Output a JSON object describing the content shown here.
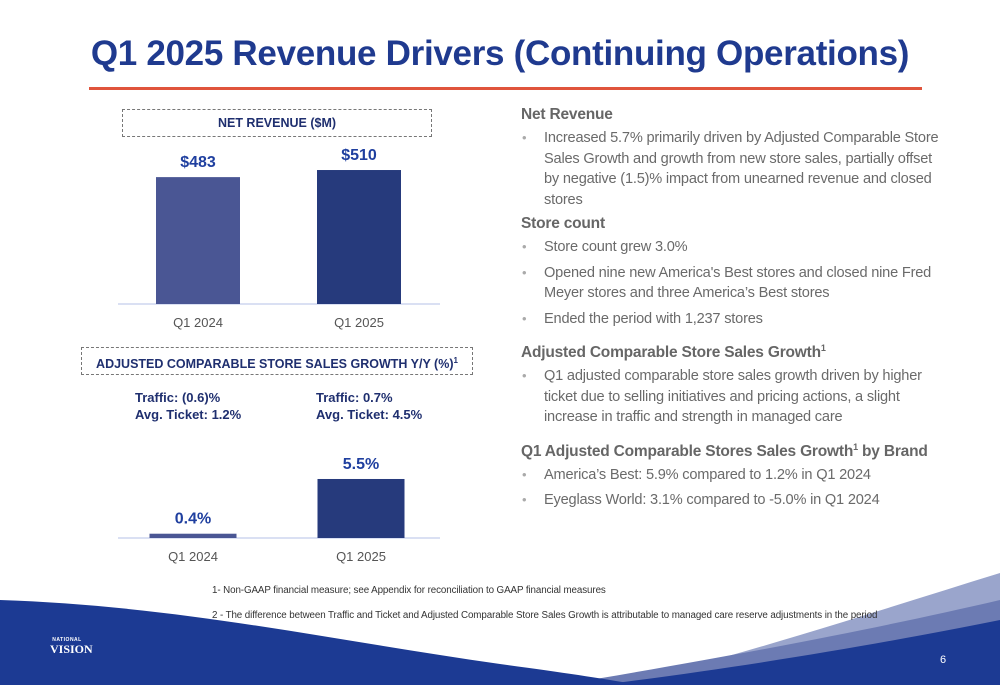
{
  "page": {
    "title": "Q1 2025 Revenue Drivers (Continuing Operations)",
    "page_number": "6",
    "logo": {
      "line1": "NATIONAL",
      "line2": "VISION"
    }
  },
  "charts_header": {
    "net_revenue_box": "NET REVENUE ($M)",
    "comp_sales_box": "ADJUSTED COMPARABLE STORE SALES GROWTH Y/Y (%)",
    "comp_sales_box_sup": "1"
  },
  "notes": {
    "q1_2024": {
      "traffic": "Traffic: (0.6)%",
      "ticket": "Avg. Ticket: 1.2%"
    },
    "q1_2025": {
      "traffic": "Traffic: 0.7%",
      "ticket": "Avg. Ticket: 4.5%"
    }
  },
  "chart_data": [
    {
      "type": "bar",
      "title": "NET REVENUE ($M)",
      "categories": [
        "Q1 2024",
        "Q1 2025"
      ],
      "values": [
        483,
        510
      ],
      "data_labels": [
        "$483",
        "$510"
      ],
      "colors": [
        "#4a5694",
        "#263a7c"
      ],
      "label_color": "#1f3f9f",
      "grid": false
    },
    {
      "type": "bar",
      "title": "ADJUSTED COMPARABLE STORE SALES GROWTH Y/Y (%)",
      "categories": [
        "Q1 2024",
        "Q1 2025"
      ],
      "values": [
        0.4,
        5.5
      ],
      "data_labels": [
        "0.4%",
        "5.5%"
      ],
      "colors": [
        "#4a5694",
        "#263a7c"
      ],
      "label_color": "#1f3f9f",
      "grid": false
    }
  ],
  "right_panel": {
    "net_revenue": {
      "heading": "Net Revenue",
      "bullets": [
        "Increased 5.7% primarily driven by Adjusted Comparable Store Sales Growth and growth from new store sales, partially offset by negative (1.5)% impact from unearned revenue and closed stores"
      ]
    },
    "store_count": {
      "heading": "Store count",
      "bullets": [
        "Store count grew 3.0%",
        "Opened nine new America's Best stores and closed nine Fred Meyer stores and three America’s Best stores",
        "Ended the period with 1,237 stores"
      ]
    },
    "adj_comp": {
      "heading": "Adjusted Comparable Store Sales Growth",
      "heading_sup": "1",
      "bullets": [
        "Q1 adjusted comparable store sales growth driven by higher ticket due to selling initiatives and pricing actions, a slight increase in traffic and strength in managed care"
      ]
    },
    "by_brand": {
      "heading_pre": "Q1 Adjusted Comparable Stores Sales Growth",
      "heading_sup": "1",
      "heading_post": " by Brand",
      "bullets": [
        "America’s Best: 5.9% compared to 1.2% in Q1 2024",
        "Eyeglass World: 3.1% compared to -5.0% in Q1 2024"
      ]
    }
  },
  "footnotes": [
    "1- Non-GAAP financial measure; see Appendix for reconciliation to GAAP financial measures",
    "2 - The difference between Traffic and Ticket and Adjusted Comparable Store Sales Growth is attributable to managed care reserve adjustments in the period"
  ],
  "colors": {
    "title": "#1f3a8f",
    "rule": "#e0543c",
    "footer_dark": "#1c3a93",
    "footer_light": "#8e9ac4"
  }
}
